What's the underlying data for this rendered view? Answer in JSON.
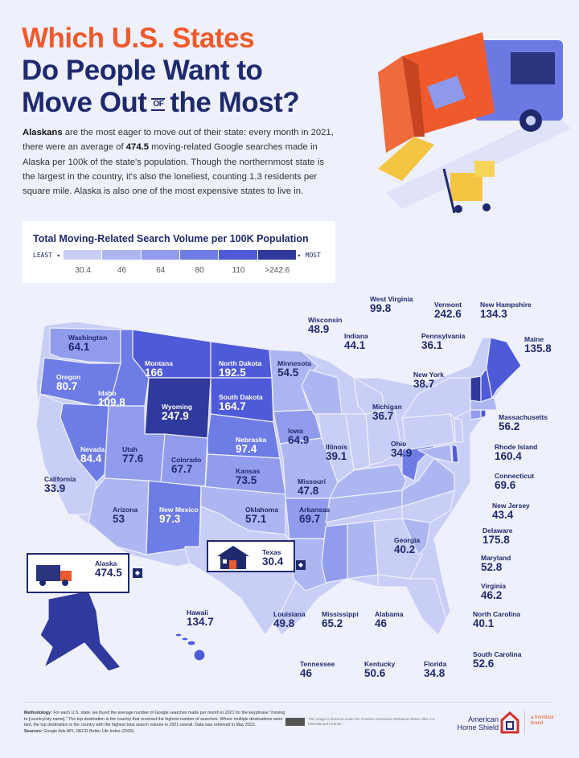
{
  "title": {
    "line1": "Which U.S. States",
    "line2": "Do People Want to",
    "line3a": "Move Out",
    "line3_of": "OF",
    "line3b": "the Most?"
  },
  "intro": {
    "lead": "Alaskans",
    "part1": " are the most eager to move out of their state: every month in 2021, there were an average of ",
    "highlight": "474.5",
    "part2": " moving-related Google searches made in Alaska per 100k of the state's population. Though the northernmost state is the largest in the country, it's also the loneliest, counting 1.3 residents per square mile. Alaska is also one of the most expensive states to live in."
  },
  "legend": {
    "title": "Total Moving-Related Search Volume per 100K Population",
    "least": "LEAST",
    "most": "MOST",
    "labels": [
      "30.4",
      "46",
      "64",
      "80",
      "110",
      ">242.6"
    ],
    "thresholds": [
      30.4,
      46,
      64,
      80,
      110,
      242.6
    ],
    "colors": [
      "#c9cef6",
      "#aeb6f1",
      "#919cec",
      "#6e7ce6",
      "#4f5ad9",
      "#2f3a9c"
    ]
  },
  "states": {
    "washington": {
      "name": "Washington",
      "value": "64.1"
    },
    "oregon": {
      "name": "Oregon",
      "value": "80.7"
    },
    "idaho": {
      "name": "Idaho",
      "value": "109.8"
    },
    "montana": {
      "name": "Montana",
      "value": "166"
    },
    "north_dakota": {
      "name": "North Dakota",
      "value": "192.5"
    },
    "south_dakota": {
      "name": "South Dakota",
      "value": "164.7"
    },
    "wyoming": {
      "name": "Wyoming",
      "value": "247.9"
    },
    "minnesota": {
      "name": "Minnesota",
      "value": "54.5"
    },
    "nevada": {
      "name": "Nevada",
      "value": "84.4"
    },
    "utah": {
      "name": "Utah",
      "value": "77.6"
    },
    "colorado": {
      "name": "Colorado",
      "value": "67.7"
    },
    "nebraska": {
      "name": "Nebraska",
      "value": "97.4"
    },
    "kansas": {
      "name": "Kansas",
      "value": "73.5"
    },
    "iowa": {
      "name": "Iowa",
      "value": "64.9"
    },
    "california": {
      "name": "California",
      "value": "33.9"
    },
    "arizona": {
      "name": "Arizona",
      "value": "53"
    },
    "new_mexico": {
      "name": "New Mexico",
      "value": "97.3"
    },
    "oklahoma": {
      "name": "Oklahoma",
      "value": "57.1"
    },
    "arkansas": {
      "name": "Arkansas",
      "value": "69.7"
    },
    "missouri": {
      "name": "Missouri",
      "value": "47.8"
    },
    "illinois": {
      "name": "Illinois",
      "value": "39.1"
    },
    "ohio": {
      "name": "Ohio",
      "value": "34.9"
    },
    "michigan": {
      "name": "Michigan",
      "value": "36.7"
    },
    "wisconsin": {
      "name": "Wisconsin",
      "value": "48.9"
    },
    "indiana": {
      "name": "Indiana",
      "value": "44.1"
    },
    "west_virginia": {
      "name": "West Virginia",
      "value": "99.8"
    },
    "vermont": {
      "name": "Vermont",
      "value": "242.6"
    },
    "new_hampshire": {
      "name": "New Hampshire",
      "value": "134.3"
    },
    "maine": {
      "name": "Maine",
      "value": "135.8"
    },
    "pennsylvania": {
      "name": "Pennsylvania",
      "value": "36.1"
    },
    "new_york": {
      "name": "New York",
      "value": "38.7"
    },
    "massachusetts": {
      "name": "Massachusetts",
      "value": "56.2"
    },
    "rhode_island": {
      "name": "Rhode Island",
      "value": "160.4"
    },
    "connecticut": {
      "name": "Connecticut",
      "value": "69.6"
    },
    "new_jersey": {
      "name": "New Jersey",
      "value": "43.4"
    },
    "delaware": {
      "name": "Delaware",
      "value": "175.8"
    },
    "maryland": {
      "name": "Maryland",
      "value": "52.8"
    },
    "virginia": {
      "name": "Virginia",
      "value": "46.2"
    },
    "north_carolina": {
      "name": "North Carolina",
      "value": "40.1"
    },
    "south_carolina": {
      "name": "South Carolina",
      "value": "52.6"
    },
    "georgia": {
      "name": "Georgia",
      "value": "40.2"
    },
    "florida": {
      "name": "Florida",
      "value": "34.8"
    },
    "alabama": {
      "name": "Alabama",
      "value": "46"
    },
    "mississippi": {
      "name": "Mississippi",
      "value": "65.2"
    },
    "louisiana": {
      "name": "Louisiana",
      "value": "49.8"
    },
    "tennessee": {
      "name": "Tennessee",
      "value": "46"
    },
    "kentucky": {
      "name": "Kentucky",
      "value": "50.6"
    },
    "texas": {
      "name": "Texas",
      "value": "30.4"
    },
    "alaska": {
      "name": "Alaska",
      "value": "474.5"
    },
    "hawaii": {
      "name": "Hawaii",
      "value": "134.7"
    }
  },
  "footer": {
    "methodology_label": "Methodology:",
    "methodology": " For each U.S. state, we found the average number of Google searches made per month in 2021 for the keyphrase \"moving to [country/city name].\" The top destination is the country that received the highest number of searches. Where multiple destinations were tied, the top destination is the country with the highest total search volume in 2021 overall. Data was retrieved in May 2022.",
    "sources_label": "Sources:",
    "sources": " Google Ads API, OECD Better Life Index (2020).",
    "license": "This image is licensed under the Creative Commons Attribution-Share Alike 4.0 International License.",
    "brand": "American Home Shield",
    "parent_brand": "a frontdoor brand"
  },
  "colors": {
    "title_accent": "#ef5a2c",
    "navy": "#1f2a6e",
    "background": "#eef0fb"
  }
}
